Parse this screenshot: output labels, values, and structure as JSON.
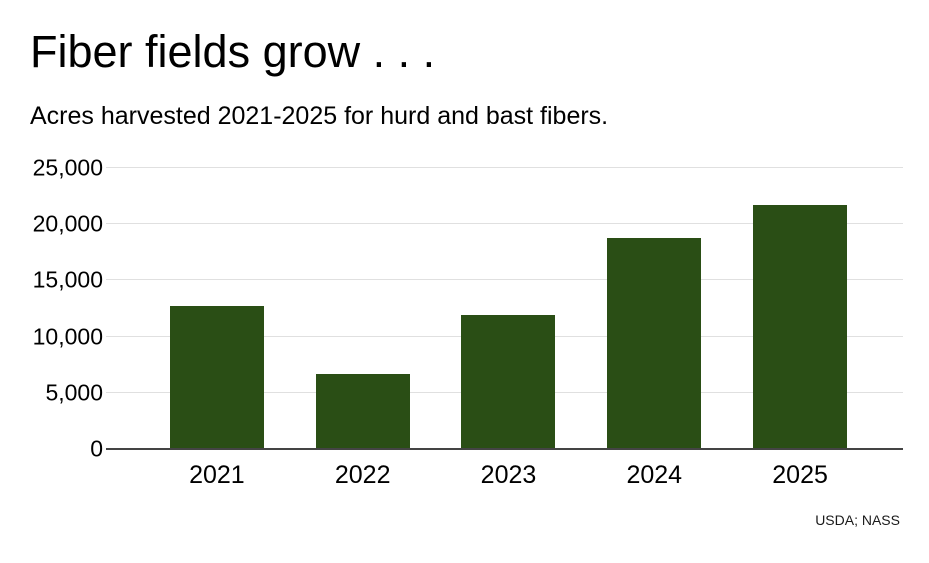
{
  "chart_data": {
    "type": "bar",
    "title": "Fiber fields grow . . .",
    "subtitle": "Acres harvested 2021-2025 for hurd and bast fibers.",
    "source": "USDA; NASS",
    "categories": [
      "2021",
      "2022",
      "2023",
      "2024",
      "2025"
    ],
    "values": [
      12700,
      6700,
      11900,
      18800,
      21700
    ],
    "unit": "acres",
    "xlabel": "",
    "ylabel": "",
    "ylim": [
      0,
      25000
    ],
    "yticks": [
      {
        "value": 0,
        "label": "0"
      },
      {
        "value": 5000,
        "label": "5,000"
      },
      {
        "value": 10000,
        "label": "10,000"
      },
      {
        "value": 15000,
        "label": "15,000"
      },
      {
        "value": 20000,
        "label": "20,000"
      },
      {
        "value": 25000,
        "label": "25,000"
      }
    ],
    "grid": true,
    "legend": false,
    "colors": {
      "bar": "#2a4e15",
      "gridline": "#e0e0e0",
      "axis": "#444444",
      "text": "#000000",
      "background": "#ffffff"
    }
  }
}
